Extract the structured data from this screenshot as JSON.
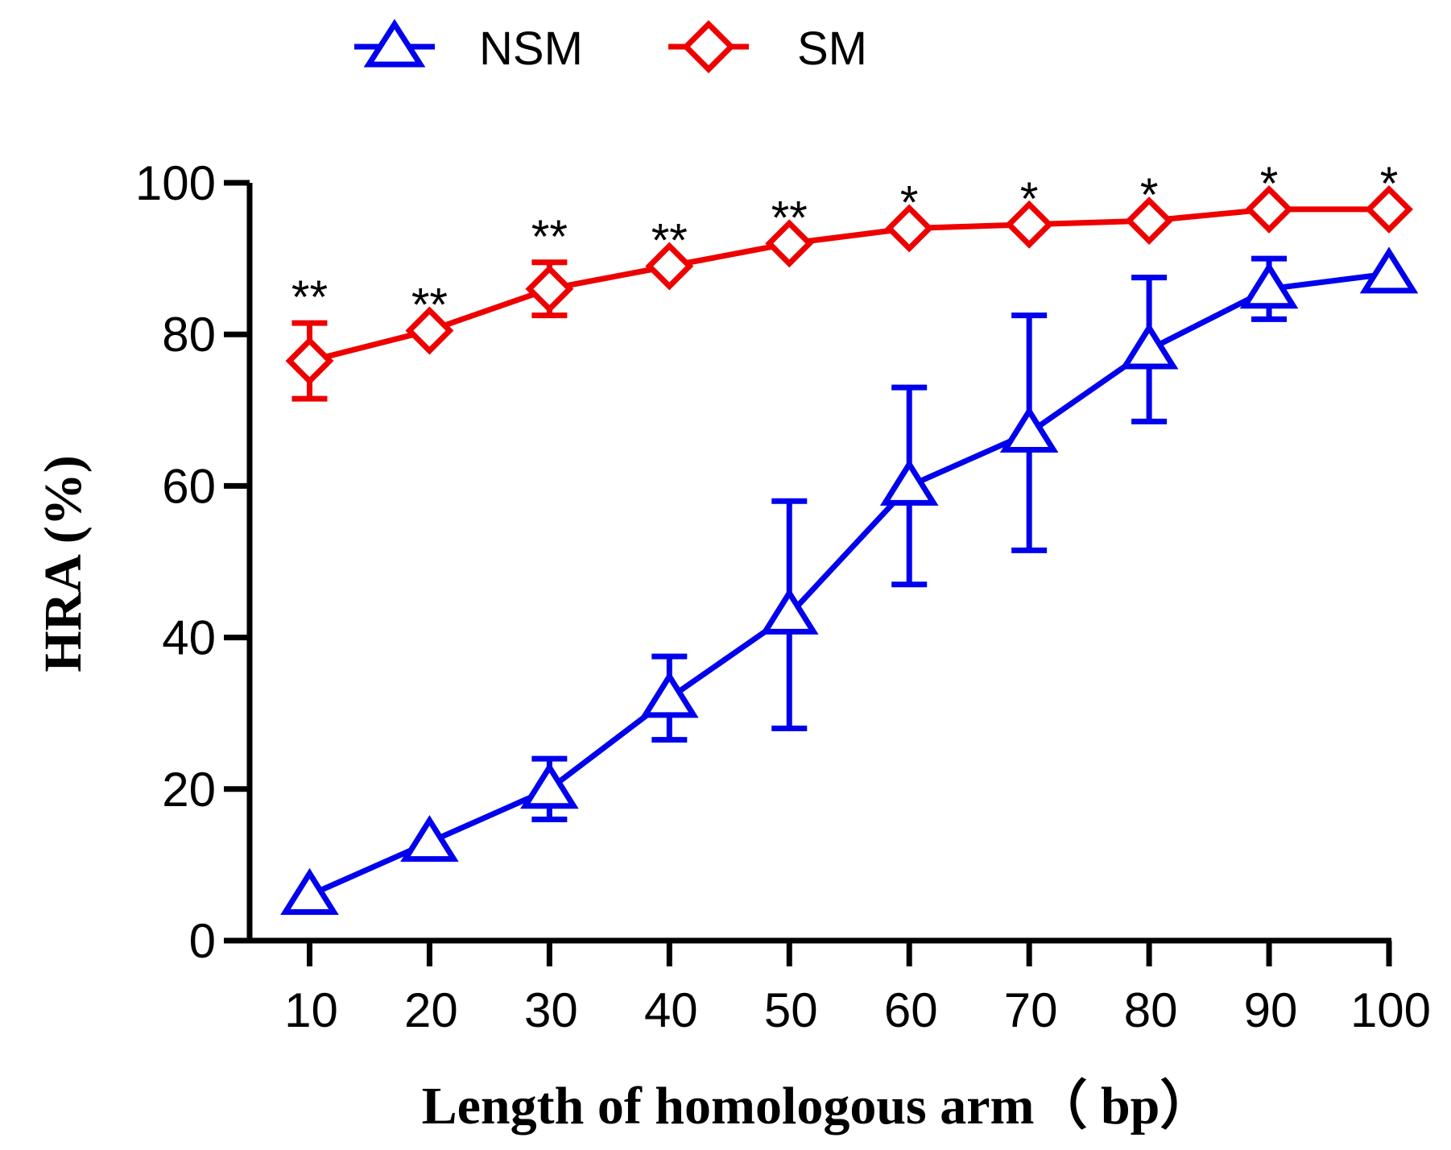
{
  "chart_data": {
    "type": "line",
    "xlabel": "Length of homologous arm（ bp）",
    "ylabel": "HRA (%)",
    "xlim": [
      5,
      100
    ],
    "ylim": [
      0,
      100
    ],
    "x": [
      10,
      20,
      30,
      40,
      50,
      60,
      70,
      80,
      90,
      100
    ],
    "x_tick_labels": [
      "10",
      "20",
      "30",
      "40",
      "50",
      "60",
      "70",
      "80",
      "90",
      "100"
    ],
    "y_ticks": [
      0,
      20,
      40,
      60,
      80,
      100
    ],
    "y_tick_labels": [
      "0",
      "20",
      "40",
      "60",
      "80",
      "100"
    ],
    "grid": false,
    "legend": {
      "placement": "top",
      "entries": [
        "NSM",
        "SM"
      ]
    },
    "series": [
      {
        "name": "NSM",
        "color": "#0000ee",
        "marker": "triangle",
        "values": [
          6,
          13,
          20,
          32,
          43,
          60,
          67,
          78,
          86,
          88
        ],
        "error": [
          0,
          0,
          4,
          5.5,
          15,
          13,
          15.5,
          9.5,
          4,
          0
        ]
      },
      {
        "name": "SM",
        "color": "#ee0000",
        "marker": "diamond",
        "values": [
          76.5,
          80.5,
          86,
          89,
          92,
          94,
          94.5,
          95,
          96.5,
          96.5
        ],
        "error": [
          5,
          0,
          3.5,
          0,
          0,
          0,
          0,
          0,
          0,
          0
        ]
      }
    ],
    "annotations": [
      "**",
      "**",
      "**",
      "**",
      "**",
      "*",
      "*",
      "*",
      "*",
      "*"
    ]
  }
}
